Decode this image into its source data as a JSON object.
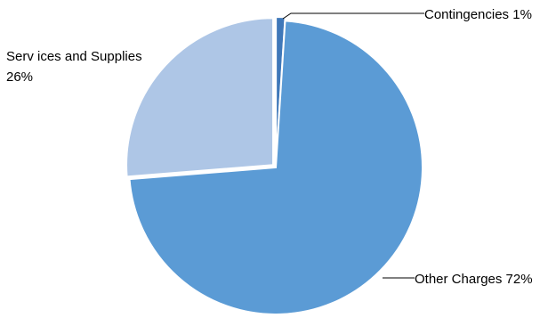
{
  "chart_data": {
    "type": "pie",
    "title": "",
    "legend": "none",
    "slices": [
      {
        "label": "Contingencies",
        "value": 1,
        "display": "Contingencies 1%",
        "color": "#3f78b9",
        "explode": true
      },
      {
        "label": "Other Charges",
        "value": 72,
        "display": "Other Charges 72%",
        "color": "#5b9bd5",
        "explode": false
      },
      {
        "label": "Services and Supplies",
        "value": 26,
        "display_lines": [
          "Serv ices and Supplies",
          "26%"
        ],
        "color": "#aec6e6",
        "explode": true
      }
    ]
  }
}
